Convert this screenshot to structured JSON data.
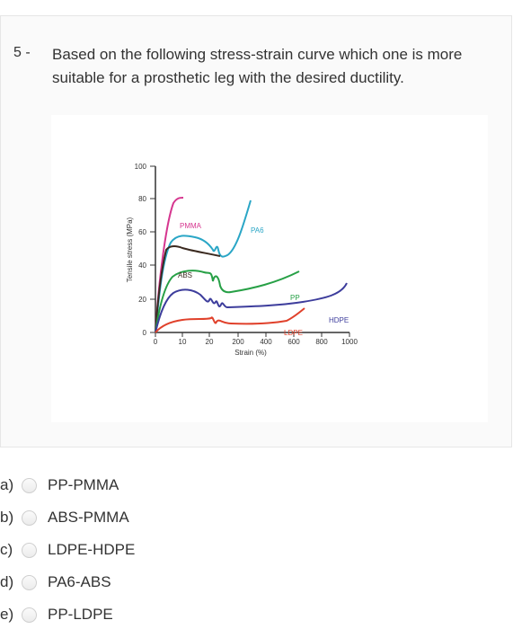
{
  "question": {
    "number": "5 -",
    "text": "Based on the following stress-strain curve which one is more suitable for a prosthetic leg with the desired ductility."
  },
  "chart_data": {
    "type": "line",
    "ylabel": "Tensile stress (MPa)",
    "xlabel": "Strain (%)",
    "ylim": [
      0,
      100
    ],
    "yticks": [
      "0",
      "20",
      "40",
      "60",
      "80",
      "100"
    ],
    "xticks": [
      "0",
      "10",
      "20",
      "200",
      "400",
      "600",
      "800",
      "1000"
    ],
    "series_labels": [
      "PMMA",
      "PA6",
      "ABS",
      "PP",
      "HDPE",
      "LDPE"
    ],
    "colors": {
      "PMMA": "#d6368f",
      "PA6": "#2aa6c6",
      "ABS": "#3b2a20",
      "PP": "#27a046",
      "HDPE": "#3d3d9c",
      "LDPE": "#e0412b"
    }
  },
  "options": [
    {
      "letter": "a)",
      "label": "PP-PMMA"
    },
    {
      "letter": "b)",
      "label": "ABS-PMMA"
    },
    {
      "letter": "c)",
      "label": "LDPE-HDPE"
    },
    {
      "letter": "d)",
      "label": "PA6-ABS"
    },
    {
      "letter": "e)",
      "label": "PP-LDPE"
    }
  ]
}
